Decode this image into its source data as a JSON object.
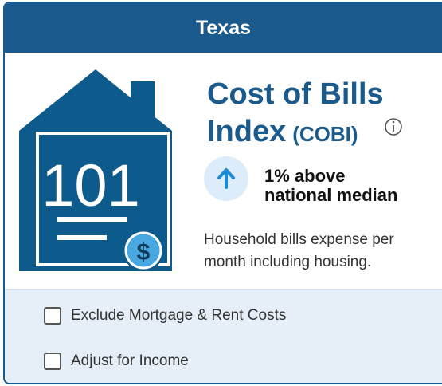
{
  "header": {
    "title": "Texas"
  },
  "icon": {
    "label": "101",
    "symbol": "$"
  },
  "title": {
    "line1": "Cost of Bills",
    "line2": "Index",
    "abbr": "(COBI)"
  },
  "comparison": {
    "line1": "1% above",
    "line2": "national median"
  },
  "description": {
    "line1": "Household bills expense per",
    "line2": "month including housing."
  },
  "options": [
    {
      "label": "Exclude Mortgage & Rent Costs"
    },
    {
      "label": "Adjust for Income"
    }
  ]
}
